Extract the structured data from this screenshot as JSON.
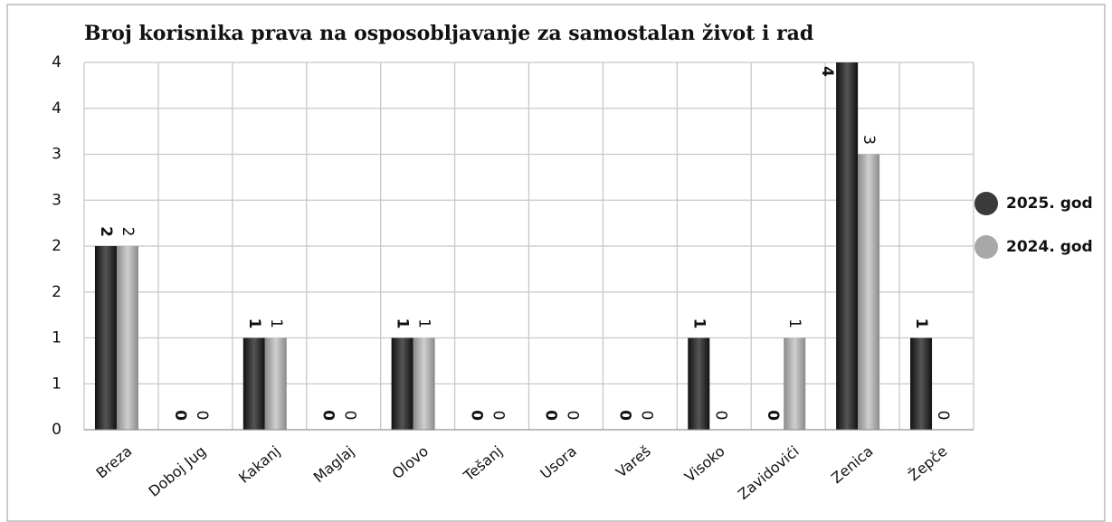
{
  "chart_data": {
    "type": "bar",
    "title": "Broj korisnika prava na osposobljavanje za samostalan život i rad",
    "categories": [
      "Breza",
      "Doboj Jug",
      "Kakanj",
      "Maglaj",
      "Olovo",
      "Tešanj",
      "Usora",
      "Vareš",
      "Visoko",
      "Zavidovići",
      "Zenica",
      "Žepče"
    ],
    "series": [
      {
        "name": "2025. god",
        "color": "#3a3a3a",
        "values": [
          2,
          0,
          1,
          0,
          1,
          0,
          0,
          0,
          1,
          0,
          4,
          1
        ]
      },
      {
        "name": "2024. god",
        "color": "#a8a8a8",
        "values": [
          2,
          0,
          1,
          0,
          1,
          0,
          0,
          0,
          0,
          1,
          3,
          0
        ]
      }
    ],
    "ylim": [
      0,
      4
    ],
    "yticks": [
      0,
      {
        "value": 0.5,
        "label": "1"
      },
      1,
      {
        "value": 1.5,
        "label": "2"
      },
      2,
      {
        "value": 2.5,
        "label": "3"
      },
      3,
      {
        "value": 3.5,
        "label": "4"
      },
      4
    ],
    "grid": true,
    "legend": "right"
  }
}
